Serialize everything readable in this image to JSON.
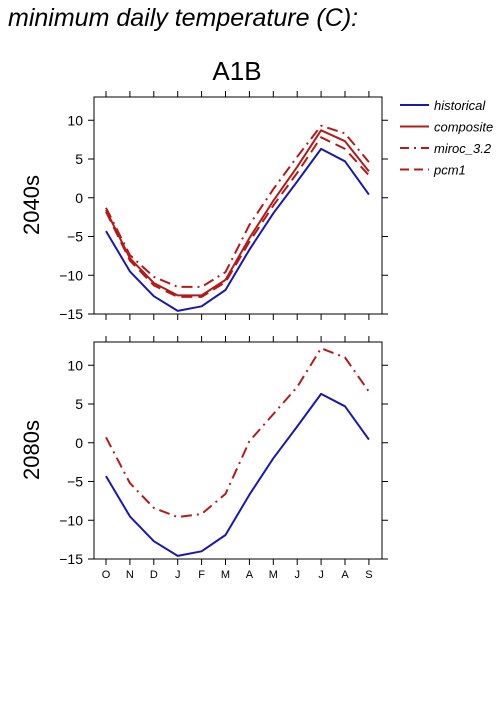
{
  "figure_title": "minimum daily temperature (C):",
  "chart_data": {
    "type": "line",
    "title": "A1B",
    "months": [
      "O",
      "N",
      "D",
      "J",
      "F",
      "M",
      "A",
      "M",
      "J",
      "J",
      "A",
      "S"
    ],
    "ylim": [
      -15,
      13
    ],
    "yticks": [
      10,
      5,
      0,
      -5,
      -10,
      -15
    ],
    "grid": false,
    "legend_position": "right of top panel",
    "colors": {
      "historical": "#1a1aaa",
      "scenario": "#b31b1b"
    },
    "legend": [
      {
        "name": "historical",
        "style": "solid",
        "color": "#1a1aaa"
      },
      {
        "name": "composite",
        "style": "solid",
        "color": "#b31b1b"
      },
      {
        "name": "miroc_3.2",
        "style": "dashdot",
        "color": "#b31b1b"
      },
      {
        "name": "pcm1",
        "style": "dashed",
        "color": "#b31b1b"
      }
    ],
    "panels": [
      {
        "ylabel": "2040s",
        "series": [
          {
            "name": "historical",
            "style": "solid",
            "color": "#1a1aaa",
            "values": [
              -4.3,
              -9.5,
              -12.7,
              -14.6,
              -14.0,
              -11.9,
              -6.7,
              -2.0,
              2.1,
              6.3,
              4.7,
              0.4
            ]
          },
          {
            "name": "composite",
            "style": "solid",
            "color": "#b31b1b",
            "values": [
              -1.6,
              -7.8,
              -11.0,
              -12.6,
              -12.6,
              -10.6,
              -5.2,
              -0.4,
              4.0,
              8.7,
              7.3,
              3.4
            ]
          },
          {
            "name": "miroc_3.2",
            "style": "dashdot",
            "color": "#b31b1b",
            "values": [
              -1.3,
              -7.4,
              -10.2,
              -11.5,
              -11.5,
              -9.6,
              -3.5,
              1.1,
              5.3,
              9.3,
              8.3,
              4.6
            ]
          },
          {
            "name": "pcm1",
            "style": "dashed",
            "color": "#b31b1b",
            "values": [
              -1.8,
              -8.1,
              -11.3,
              -12.8,
              -12.8,
              -10.9,
              -5.7,
              -1.0,
              3.2,
              7.8,
              6.3,
              2.9
            ]
          }
        ]
      },
      {
        "ylabel": "2080s",
        "series": [
          {
            "name": "historical",
            "style": "solid",
            "color": "#1a1aaa",
            "values": [
              -4.3,
              -9.5,
              -12.7,
              -14.6,
              -14.0,
              -11.9,
              -6.7,
              -2.0,
              2.1,
              6.3,
              4.7,
              0.4
            ]
          },
          {
            "name": "miroc_3.2",
            "style": "dashdot",
            "color": "#b31b1b",
            "values": [
              0.7,
              -5.2,
              -8.4,
              -9.6,
              -9.2,
              -6.6,
              0.2,
              3.7,
              7.2,
              12.2,
              11.0,
              6.6
            ]
          }
        ]
      }
    ]
  }
}
